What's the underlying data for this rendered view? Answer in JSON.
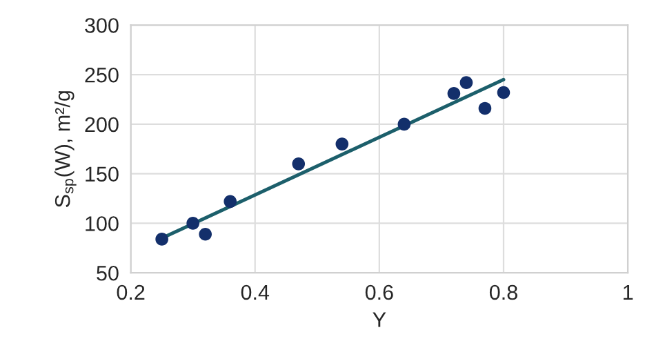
{
  "chart_data": {
    "type": "scatter",
    "xlabel": "Y",
    "ylabel": "S$_{sp}$(W), m²/g",
    "xlim": [
      0.2,
      1
    ],
    "xticks": [
      0.2,
      0.4,
      0.6,
      0.8,
      1
    ],
    "ylim": [
      50,
      300
    ],
    "yticks": [
      50,
      100,
      150,
      200,
      250,
      300
    ],
    "grid": true,
    "legend": false,
    "marker": "circle",
    "series": [
      {
        "color": "#132f6b",
        "x": [
          0.25,
          0.3,
          0.32,
          0.36,
          0.47,
          0.54,
          0.64,
          0.72,
          0.74,
          0.77,
          0.8
        ],
        "values": [
          84,
          100,
          89,
          122,
          160,
          180,
          200,
          231,
          242,
          216,
          232
        ]
      },
      {
        "type": "line",
        "marker": "none",
        "color": "#1c5f6b",
        "x": [
          0.25,
          0.8
        ],
        "values": [
          85,
          245
        ]
      }
    ]
  }
}
